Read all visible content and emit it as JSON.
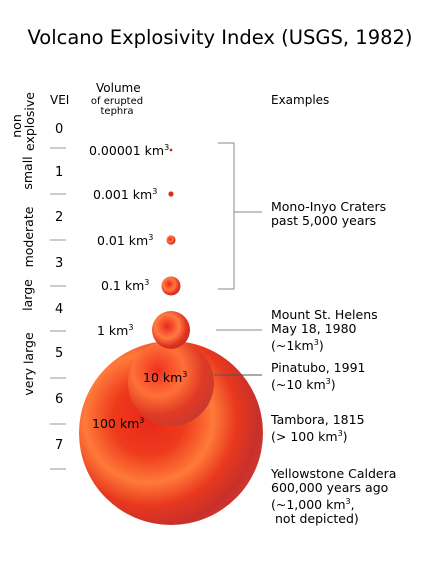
{
  "title": "Volcano Explosivity Index (USGS, 1982)",
  "headers": {
    "vei": "VEI",
    "volume": "Volume",
    "volume_sub1": "of erupted",
    "volume_sub2": "tephra",
    "examples": "Examples"
  },
  "vei_levels": [
    "0",
    "1",
    "2",
    "3",
    "4",
    "5",
    "6",
    "7"
  ],
  "categories": {
    "non_explosive_1": "non",
    "non_explosive_2": "explosive",
    "small": "small",
    "moderate": "moderate",
    "large": "large",
    "very_large": "very large"
  },
  "volumes": {
    "v1": "0.00001 km",
    "v2": "0.001 km",
    "v3": "0.01 km",
    "v4": "0.1 km",
    "v5": "1 km",
    "v6": "10 km",
    "v7": "100 km",
    "exp": "3"
  },
  "examples": {
    "mono_1": "Mono-Inyo Craters",
    "mono_2": "past 5,000 years",
    "sth_1": "Mount St. Helens",
    "sth_2": "May 18, 1980",
    "sth_3a": "(~1km",
    "sth_3b": ")",
    "pin_1": "Pinatubo, 1991",
    "pin_2a": "(~10 km",
    "pin_2b": ")",
    "tam_1": "Tambora, 1815",
    "tam_2a": "(> 100 km",
    "tam_2b": ")",
    "yel_1": "Yellowstone Caldera",
    "yel_2": "600,000 years ago",
    "yel_3a": "(~1,000 km",
    "yel_3b": ",",
    "yel_4": "not depicted)"
  },
  "colors": {
    "sphere_light": "#ff7a3a",
    "sphere_mid": "#e8281a",
    "sphere_dark": "#c8302a",
    "line": "#888888"
  }
}
